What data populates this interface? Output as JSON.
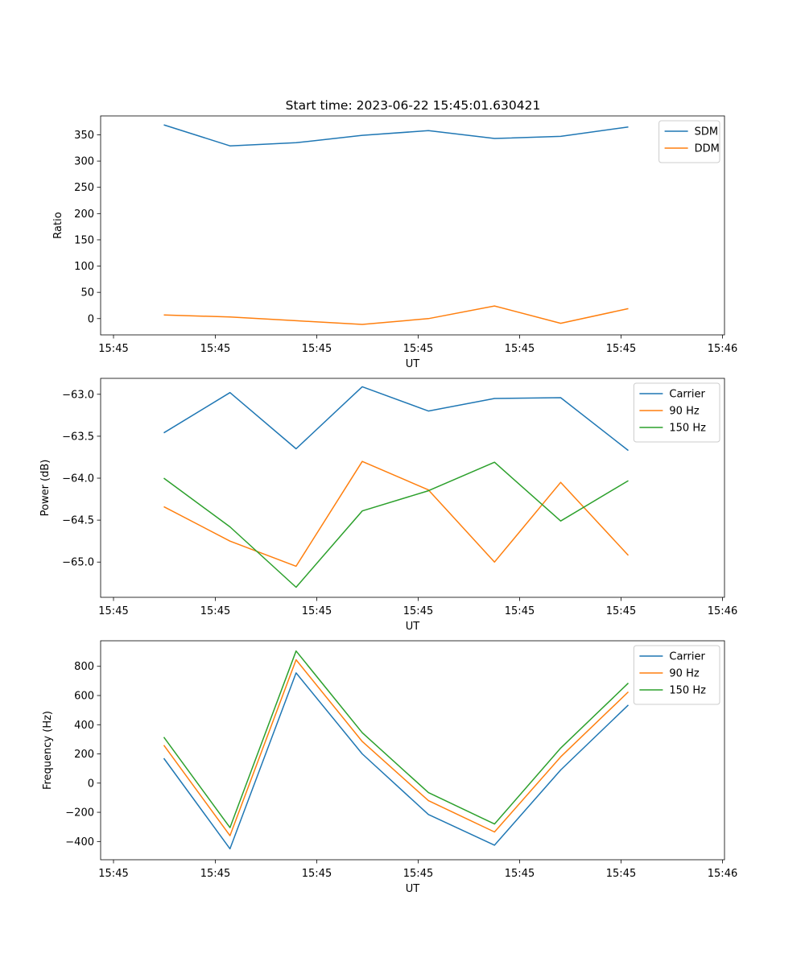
{
  "title": "Start time: 2023-06-22 15:45:01.630421",
  "xaxis": {
    "label": "UT",
    "tick_labels": [
      "15:45",
      "15:45",
      "15:45",
      "15:45",
      "15:45",
      "15:45",
      "15:45",
      "15:46"
    ]
  },
  "colors": {
    "blue": "#1f77b4",
    "orange": "#ff7f0e",
    "green": "#2ca02c"
  },
  "chart_data": [
    {
      "type": "line",
      "ylabel": "Ratio",
      "xlabel": "UT",
      "legend_position": "top-right",
      "grid": false,
      "ylim": [
        -31,
        386
      ],
      "yticks": [
        0,
        50,
        100,
        150,
        200,
        250,
        300,
        350
      ],
      "x_index": [
        1,
        2,
        3,
        4,
        5,
        6,
        7,
        8
      ],
      "series": [
        {
          "name": "SDM",
          "color": "#1f77b4",
          "values": [
            369,
            329,
            335,
            349,
            358,
            343,
            347,
            365
          ]
        },
        {
          "name": "DDM",
          "color": "#ff7f0e",
          "values": [
            7,
            3,
            -4,
            -11,
            0,
            24,
            -9,
            19
          ]
        }
      ]
    },
    {
      "type": "line",
      "ylabel": "Power (dB)",
      "xlabel": "UT",
      "legend_position": "top-right",
      "grid": false,
      "ylim": [
        -65.42,
        -62.81
      ],
      "yticks": [
        -65.0,
        -64.5,
        -64.0,
        -63.5,
        -63.0
      ],
      "x_index": [
        1,
        2,
        3,
        4,
        5,
        6,
        7,
        8
      ],
      "series": [
        {
          "name": "Carrier",
          "color": "#1f77b4",
          "values": [
            -63.46,
            -62.98,
            -63.65,
            -62.91,
            -63.2,
            -63.05,
            -63.04,
            -63.67
          ]
        },
        {
          "name": "90 Hz",
          "color": "#ff7f0e",
          "values": [
            -64.34,
            -64.75,
            -65.05,
            -63.8,
            -64.14,
            -65.0,
            -64.05,
            -64.92
          ]
        },
        {
          "name": "150 Hz",
          "color": "#2ca02c",
          "values": [
            -64.0,
            -64.58,
            -65.3,
            -64.39,
            -64.15,
            -63.81,
            -64.51,
            -64.03
          ]
        }
      ]
    },
    {
      "type": "line",
      "ylabel": "Frequency (Hz)",
      "xlabel": "UT",
      "legend_position": "top-right",
      "grid": false,
      "ylim": [
        -525,
        975
      ],
      "yticks": [
        -400,
        -200,
        0,
        200,
        400,
        600,
        800
      ],
      "x_index": [
        1,
        2,
        3,
        4,
        5,
        6,
        7,
        8
      ],
      "series": [
        {
          "name": "Carrier",
          "color": "#1f77b4",
          "values": [
            170,
            -450,
            755,
            200,
            -215,
            -425,
            90,
            535
          ]
        },
        {
          "name": "90 Hz",
          "color": "#ff7f0e",
          "values": [
            260,
            -360,
            845,
            285,
            -120,
            -335,
            180,
            625
          ]
        },
        {
          "name": "150 Hz",
          "color": "#2ca02c",
          "values": [
            315,
            -305,
            905,
            345,
            -65,
            -280,
            240,
            685
          ]
        }
      ]
    }
  ]
}
